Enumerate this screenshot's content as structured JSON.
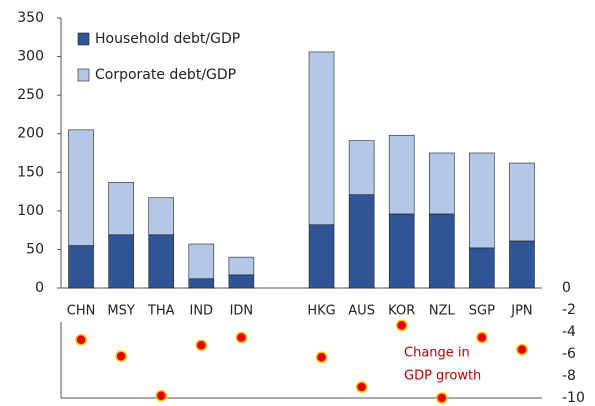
{
  "chart_data": {
    "type": "bar",
    "stacked": true,
    "categories": [
      "CHN",
      "MSY",
      "THA",
      "IND",
      "IDN",
      null,
      "HKG",
      "AUS",
      "KOR",
      "NZL",
      "SGP",
      "JPN"
    ],
    "series": [
      {
        "name": "Household debt/GDP",
        "color": "#2f5597",
        "values": [
          55,
          69,
          69,
          12,
          17,
          null,
          82,
          121,
          96,
          96,
          52,
          61
        ]
      },
      {
        "name": "Corporate debt/GDP",
        "color": "#b4c7e7",
        "values": [
          150,
          68,
          48,
          45,
          23,
          null,
          224,
          70,
          102,
          79,
          123,
          101
        ]
      },
      {
        "type": "scatter",
        "axis": "y2",
        "color": "#e00000",
        "values": [
          -4.7,
          -6.2,
          -9.8,
          -5.2,
          -4.5,
          null,
          -6.3,
          -9.0,
          -3.4,
          -10.0,
          -4.5,
          -5.6
        ]
      }
    ],
    "ylim": [
      0,
      350
    ],
    "yticks": [
      0,
      50,
      100,
      150,
      200,
      250,
      300,
      350
    ],
    "y2lim": [
      0,
      -10
    ],
    "y2ticks": [
      0,
      -2,
      -4,
      -6,
      -8,
      -10
    ],
    "annotation": [
      "Change in",
      "GDP growth"
    ],
    "legend": "top-left"
  }
}
